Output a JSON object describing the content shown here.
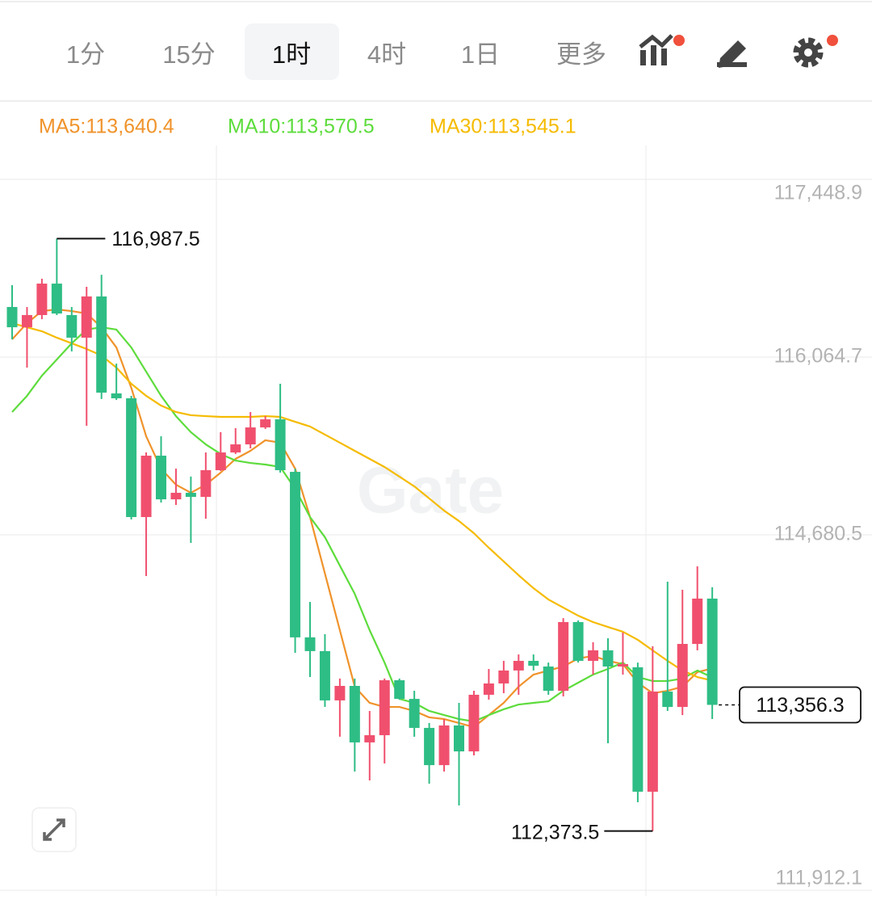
{
  "toolbar": {
    "tabs": [
      "1分",
      "15分",
      "1时",
      "4时",
      "1日",
      "更多"
    ],
    "active": 2
  },
  "chart_data": {
    "type": "candlestick",
    "watermark": "Gate",
    "up_color": "#f0506e",
    "down_color": "#2ebd85",
    "ylim": [
      111868.1,
      117713.2
    ],
    "yticks": [
      {
        "value": 117448.9,
        "label": "117,448.9"
      },
      {
        "value": 116064.7,
        "label": "116,064.7"
      },
      {
        "value": 114680.5,
        "label": "114,680.5"
      },
      {
        "value": 111912.1,
        "label": "111,912.1"
      }
    ],
    "grid": true,
    "open": [
      116455,
      116297,
      116392,
      116637,
      116392,
      116216,
      116537,
      115782,
      115744,
      114819,
      115297,
      114957,
      115008,
      114976,
      115184,
      115322,
      115385,
      115517,
      115580,
      115171,
      113882,
      113775,
      113391,
      113504,
      113064,
      113120,
      113548,
      113403,
      113177,
      112887,
      113196,
      112994,
      113435,
      113523,
      113624,
      113699,
      113655,
      113466,
      114001,
      113699,
      113781,
      113655,
      113649,
      112680,
      113460,
      113340,
      113831,
      114184
    ],
    "high": [
      116625,
      116455,
      116675,
      116987.5,
      116455,
      116612,
      116706,
      116014,
      115763,
      115322,
      115448,
      115196,
      115134,
      115322,
      115480,
      115511,
      115637,
      115605,
      115857,
      115196,
      114158,
      113907,
      113561,
      113561,
      113309,
      113561,
      113561,
      113466,
      113215,
      113246,
      113372,
      113466,
      113636,
      113699,
      113749,
      113749,
      113686,
      114032,
      114014,
      113844,
      113875,
      113919,
      113686,
      113812,
      114316,
      114253,
      114435,
      114272
    ],
    "low": [
      116203,
      115983,
      116360,
      116392,
      116109,
      115530,
      115738,
      115731,
      114800,
      114360,
      114932,
      114913,
      114618,
      114806,
      115178,
      115310,
      115354,
      115505,
      115165,
      113762,
      113573,
      113340,
      113108,
      112837,
      112768,
      112900,
      113397,
      113108,
      112743,
      112837,
      112573,
      112963,
      113397,
      113447,
      113435,
      113624,
      113435,
      113422,
      113686,
      113592,
      113057,
      113592,
      112598,
      112373.5,
      113309,
      113277,
      113781,
      113246
    ],
    "close": [
      116297,
      116392,
      116637,
      116404,
      116216,
      116537,
      115788,
      115744,
      114819,
      115297,
      114957,
      115008,
      114976,
      115184,
      115322,
      115385,
      115517,
      115580,
      115184,
      113882,
      113775,
      113391,
      113504,
      113064,
      113120,
      113548,
      113403,
      113177,
      112887,
      113196,
      112994,
      113435,
      113523,
      113624,
      113699,
      113661,
      113466,
      114001,
      113699,
      113781,
      113655,
      113674,
      112680,
      113460,
      113340,
      113831,
      114184,
      113356.3
    ],
    "series": [
      {
        "name": "MA5:113,640.4",
        "color": "#f0932b",
        "values": [
          116203,
          116329,
          116423,
          116436,
          116423,
          116404,
          116297,
          116140,
          115826,
          115448,
          115196,
          115071,
          115008,
          115071,
          115165,
          115272,
          115335,
          115417,
          115398,
          115196,
          114819,
          114379,
          113938,
          113498,
          113372,
          113340,
          113340,
          113309,
          113259,
          113246,
          113215,
          113183,
          113277,
          113372,
          113498,
          113592,
          113624,
          113655,
          113718,
          113737,
          113699,
          113674,
          113529,
          113447,
          113466,
          113498,
          113611,
          113640.4
        ]
      },
      {
        "name": "MA10:113,570.5",
        "color": "#5ddc3c",
        "values": [
          115637,
          115763,
          115920,
          116046,
          116172,
          116279,
          116297,
          116279,
          116140,
          115951,
          115763,
          115605,
          115480,
          115385,
          115310,
          115259,
          115240,
          115228,
          115209,
          115039,
          114819,
          114662,
          114441,
          114221,
          113938,
          113686,
          113403,
          113372,
          113309,
          113277,
          113246,
          113227,
          113277,
          113322,
          113359,
          113372,
          113384,
          113466,
          113529,
          113592,
          113636,
          113686,
          113573,
          113542,
          113542,
          113561,
          113624,
          113570.5
        ]
      },
      {
        "name": "MA30:113,545.1",
        "color": "#f5bb00",
        "values": [
          116329,
          116297,
          116266,
          116216,
          116172,
          116128,
          116077,
          115983,
          115857,
          115763,
          115687,
          115637,
          115612,
          115605,
          115599,
          115599,
          115599,
          115605,
          115599,
          115561,
          115524,
          115461,
          115398,
          115335,
          115272,
          115209,
          115134,
          115058,
          114964,
          114869,
          114788,
          114693,
          114580,
          114473,
          114366,
          114265,
          114177,
          114114,
          114051,
          114001,
          113963,
          113926,
          113863,
          113781,
          113699,
          113624,
          113573,
          113545.1
        ]
      }
    ],
    "annotations": [
      {
        "kind": "high",
        "value": 116987.5,
        "label": "116,987.5"
      },
      {
        "kind": "low",
        "value": 112373.5,
        "label": "112,373.5"
      }
    ],
    "last_price": {
      "value": 113356.3,
      "label": "113,356.3"
    }
  }
}
